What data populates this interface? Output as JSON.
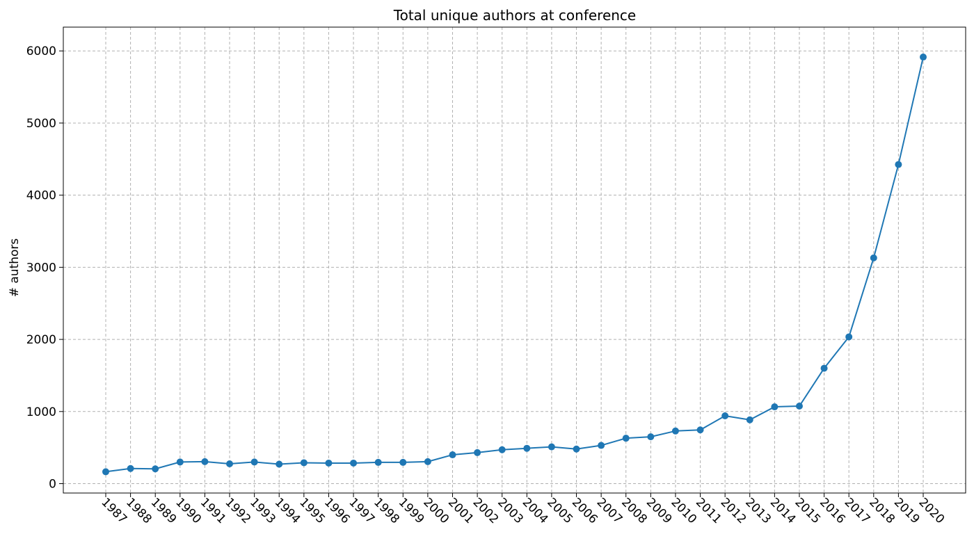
{
  "chart_data": {
    "type": "line",
    "title": "Total unique authors at conference",
    "xlabel": "",
    "ylabel": "# authors",
    "x": [
      "1987",
      "1988",
      "1989",
      "1990",
      "1991",
      "1992",
      "1993",
      "1994",
      "1995",
      "1996",
      "1997",
      "1998",
      "1999",
      "2000",
      "2001",
      "2002",
      "2003",
      "2004",
      "2005",
      "2006",
      "2007",
      "2008",
      "2009",
      "2010",
      "2011",
      "2012",
      "2013",
      "2014",
      "2015",
      "2016",
      "2017",
      "2018",
      "2019",
      "2020"
    ],
    "series": [
      {
        "values": [
          165,
          210,
          205,
          300,
          305,
          275,
          300,
          270,
          290,
          285,
          285,
          295,
          295,
          305,
          400,
          430,
          470,
          490,
          510,
          480,
          530,
          630,
          650,
          730,
          745,
          940,
          885,
          1065,
          1075,
          1600,
          2035,
          3130,
          4425,
          5915
        ],
        "color": "#1f77b4"
      }
    ],
    "yticks": [
      0,
      1000,
      2000,
      3000,
      4000,
      5000,
      6000
    ],
    "ylim": [
      -130,
      6330
    ],
    "grid": true,
    "marker": "circle",
    "xtick_rotation": -45
  }
}
